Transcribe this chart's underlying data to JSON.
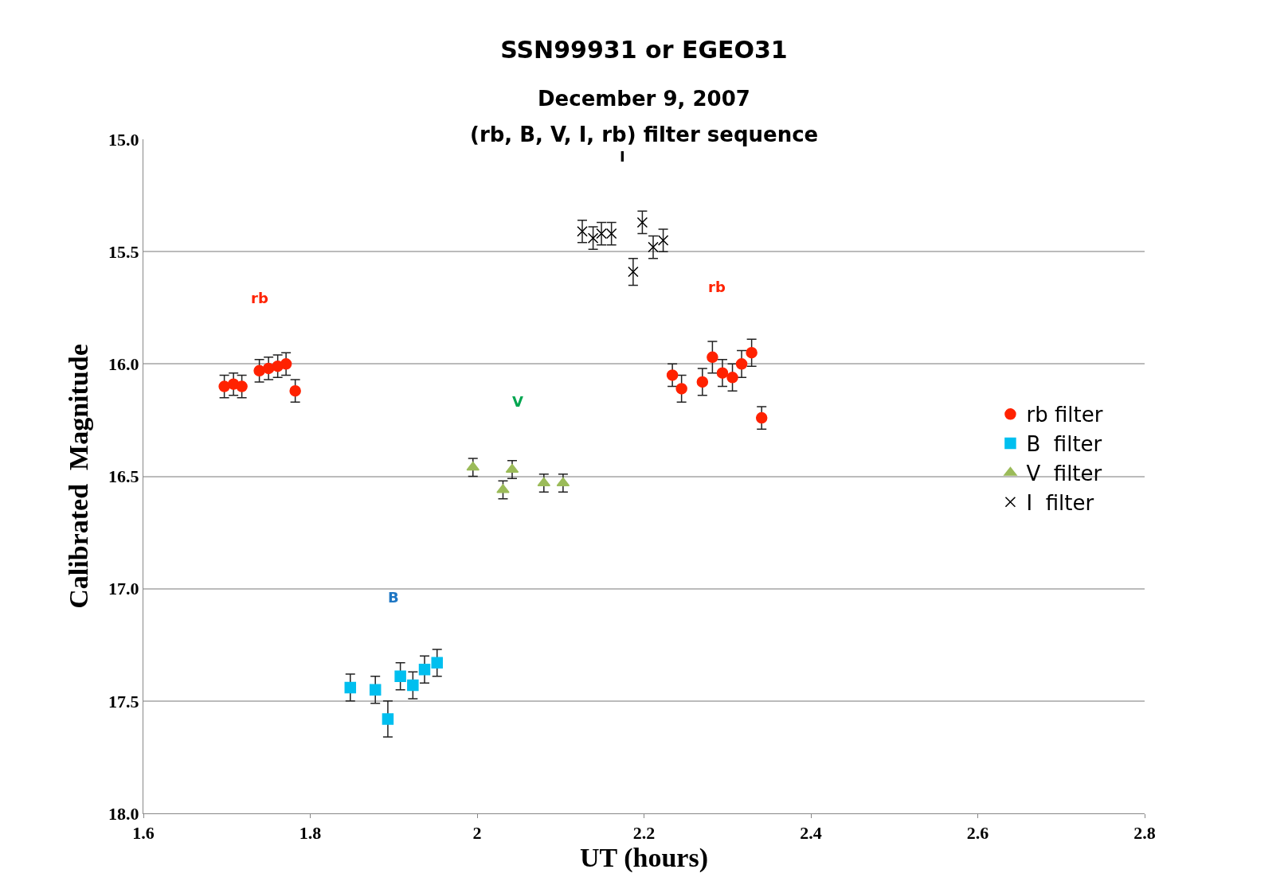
{
  "chart_data": {
    "type": "scatter",
    "title": "SSN99931 or EGEO31",
    "subtitle": "December 9, 2007",
    "xlabel": "UT (hours)",
    "ylabel": "Calibrated  Magnitude",
    "xlim": [
      1.6,
      2.8
    ],
    "xticks": [
      1.6,
      1.8,
      2,
      2.2,
      2.4,
      2.6,
      2.8
    ],
    "ylim": [
      18.0,
      15.0
    ],
    "yticks": [
      {
        "value": 15.0,
        "label": "15.0"
      },
      {
        "value": 15.5,
        "label": "15.5"
      },
      {
        "value": 16.0,
        "label": "16.0"
      },
      {
        "value": 16.5,
        "label": "16.5"
      },
      {
        "value": 17.0,
        "label": "17.0"
      },
      {
        "value": 17.5,
        "label": "17.5"
      },
      {
        "value": 18.0,
        "label": "18.0"
      }
    ],
    "grid": "y",
    "legend": "right",
    "series": [
      {
        "name": "rb filter",
        "color": "#ff2200",
        "marker": "circle",
        "x": [
          1.697,
          1.708,
          1.718,
          1.739,
          1.75,
          1.761,
          1.771,
          1.782,
          2.234,
          2.245,
          2.27,
          2.282,
          2.294,
          2.306,
          2.317,
          2.329,
          2.341
        ],
        "values": [
          16.1,
          16.09,
          16.1,
          16.03,
          16.02,
          16.01,
          16.0,
          16.12,
          16.05,
          16.11,
          16.08,
          15.97,
          16.04,
          16.06,
          16.0,
          15.95,
          16.24
        ],
        "errors": [
          0.05,
          0.05,
          0.05,
          0.05,
          0.05,
          0.05,
          0.05,
          0.05,
          0.05,
          0.06,
          0.06,
          0.07,
          0.06,
          0.06,
          0.06,
          0.06,
          0.05
        ]
      },
      {
        "name": "B  filter",
        "color": "#00bfef",
        "marker": "square",
        "x": [
          1.848,
          1.878,
          1.893,
          1.908,
          1.923,
          1.937,
          1.952
        ],
        "values": [
          17.44,
          17.45,
          17.58,
          17.39,
          17.43,
          17.36,
          17.33
        ],
        "errors": [
          0.06,
          0.06,
          0.08,
          0.06,
          0.06,
          0.06,
          0.06
        ]
      },
      {
        "name": "V  filter",
        "color": "#9bbb59",
        "marker": "triangle",
        "x": [
          1.995,
          2.031,
          2.042,
          2.08,
          2.103
        ],
        "values": [
          16.46,
          16.56,
          16.47,
          16.53,
          16.53
        ],
        "errors": [
          0.04,
          0.04,
          0.04,
          0.04,
          0.04
        ]
      },
      {
        "name": "I  filter",
        "color": "#000000",
        "marker": "cross",
        "x": [
          2.126,
          2.139,
          2.149,
          2.161,
          2.187,
          2.198,
          2.211,
          2.223
        ],
        "values": [
          15.41,
          15.44,
          15.42,
          15.42,
          15.59,
          15.37,
          15.48,
          15.45
        ],
        "errors": [
          0.05,
          0.05,
          0.05,
          0.05,
          0.06,
          0.05,
          0.05,
          0.05
        ]
      }
    ],
    "annotations": [
      "(rb, B, V, I, rb) filter sequence",
      "rb",
      "B",
      "V",
      "I",
      "rb"
    ]
  }
}
